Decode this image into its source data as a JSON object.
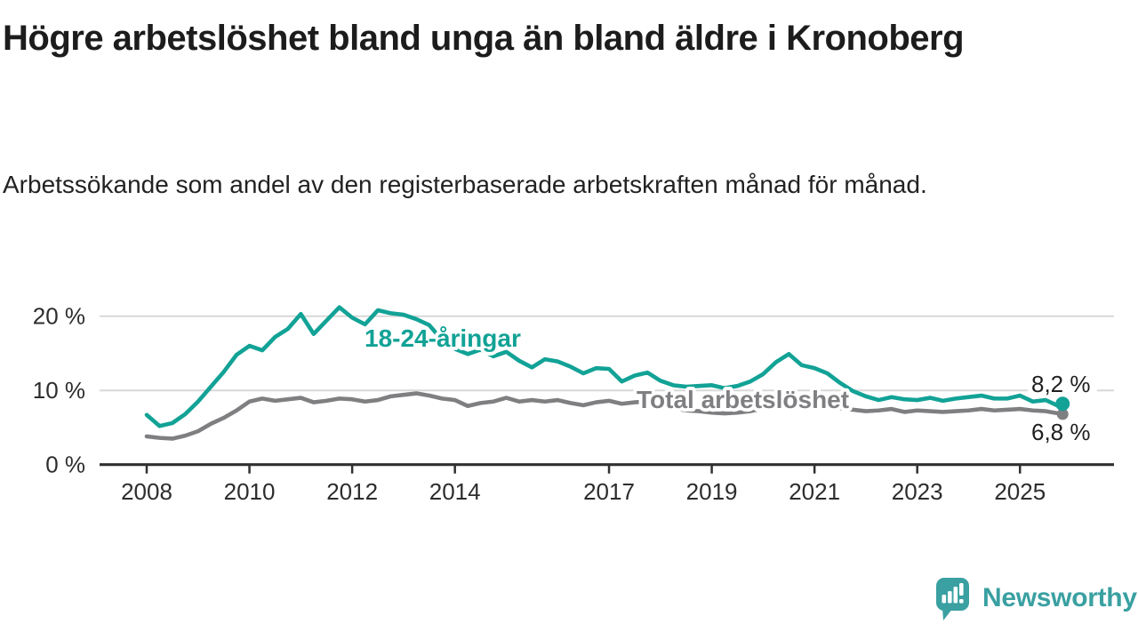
{
  "header": {
    "title": "Högre arbetslöshet bland unga än bland äldre i Kronoberg",
    "subtitle": "Arbetssökande som andel av den registerbaserade arbetskraften månad för månad."
  },
  "footer": {
    "brand": "Newsworthy"
  },
  "colors": {
    "accent_teal": "#12a296",
    "neutral_gray": "#7f7f82",
    "gridline": "#d8d8d8",
    "axis": "#303030",
    "logo_teal": "#3aa0a1"
  },
  "chart_data": {
    "type": "line",
    "title": "Högre arbetslöshet bland unga än bland äldre i Kronoberg",
    "xlabel": "",
    "ylabel": "Arbetssökande som andel av den registerbaserade arbetskraften (%)",
    "grid": "horizontal gridlines at 10 and 20",
    "legend_position": "inline labels on lines",
    "xlim": [
      2007.1,
      2026.8
    ],
    "ylim": [
      0,
      22.5
    ],
    "x_ticks": [
      2008,
      2010,
      2012,
      2014,
      2017,
      2019,
      2021,
      2023,
      2025
    ],
    "y_ticks": [
      {
        "value": 20,
        "label": "20 %"
      },
      {
        "value": 10,
        "label": "10 %"
      },
      {
        "value": 0,
        "label": "0 %"
      }
    ],
    "x": [
      2008,
      2008.25,
      2008.5,
      2008.75,
      2009,
      2009.25,
      2009.5,
      2009.75,
      2010,
      2010.25,
      2010.5,
      2010.75,
      2011,
      2011.25,
      2011.5,
      2011.75,
      2012,
      2012.25,
      2012.5,
      2012.75,
      2013,
      2013.25,
      2013.5,
      2013.75,
      2014,
      2014.25,
      2014.5,
      2014.75,
      2015,
      2015.25,
      2015.5,
      2015.75,
      2016,
      2016.25,
      2016.5,
      2016.75,
      2017,
      2017.25,
      2017.5,
      2017.75,
      2018,
      2018.25,
      2018.5,
      2018.75,
      2019,
      2019.25,
      2019.5,
      2019.75,
      2020,
      2020.25,
      2020.5,
      2020.75,
      2021,
      2021.25,
      2021.5,
      2021.75,
      2022,
      2022.25,
      2022.5,
      2022.75,
      2023,
      2023.25,
      2023.5,
      2023.75,
      2024,
      2024.25,
      2024.5,
      2024.75,
      2025,
      2025.25,
      2025.5,
      2025.75,
      2025.83
    ],
    "series": [
      {
        "name": "18-24-åringar",
        "color": "#12a296",
        "end_label": "8,2 %",
        "end_value": 8.2,
        "values": [
          6.7,
          5.2,
          5.6,
          6.8,
          8.5,
          10.5,
          12.5,
          14.8,
          16.0,
          15.4,
          17.2,
          18.3,
          20.3,
          17.6,
          19.4,
          21.2,
          19.8,
          18.9,
          20.8,
          20.4,
          20.2,
          19.6,
          18.8,
          16.8,
          15.6,
          14.9,
          15.5,
          14.6,
          15.2,
          14.0,
          13.1,
          14.2,
          13.9,
          13.2,
          12.3,
          13.0,
          12.9,
          11.2,
          12.0,
          12.4,
          11.3,
          10.7,
          10.5,
          10.6,
          10.7,
          10.3,
          10.6,
          11.2,
          12.2,
          13.8,
          14.9,
          13.4,
          13.0,
          12.3,
          11.0,
          9.9,
          9.2,
          8.7,
          9.1,
          8.8,
          8.7,
          9.0,
          8.6,
          8.9,
          9.1,
          9.3,
          8.9,
          8.9,
          9.3,
          8.5,
          8.7,
          7.9,
          8.2
        ]
      },
      {
        "name": "Total arbetslöshet",
        "color": "#7f7f82",
        "end_label": "6,8 %",
        "end_value": 6.8,
        "values": [
          3.8,
          3.6,
          3.5,
          3.9,
          4.5,
          5.5,
          6.3,
          7.3,
          8.5,
          8.9,
          8.6,
          8.8,
          9.0,
          8.4,
          8.6,
          8.9,
          8.8,
          8.5,
          8.7,
          9.2,
          9.4,
          9.6,
          9.3,
          8.9,
          8.7,
          7.9,
          8.3,
          8.5,
          9.0,
          8.5,
          8.7,
          8.5,
          8.7,
          8.3,
          8.0,
          8.4,
          8.6,
          8.2,
          8.4,
          8.5,
          8.0,
          7.6,
          7.3,
          7.2,
          7.0,
          6.9,
          7.0,
          7.2,
          7.6,
          8.6,
          8.9,
          8.7,
          8.3,
          7.9,
          7.6,
          7.4,
          7.2,
          7.3,
          7.5,
          7.1,
          7.3,
          7.2,
          7.1,
          7.2,
          7.3,
          7.5,
          7.3,
          7.4,
          7.5,
          7.3,
          7.2,
          6.9,
          6.8
        ]
      }
    ]
  }
}
